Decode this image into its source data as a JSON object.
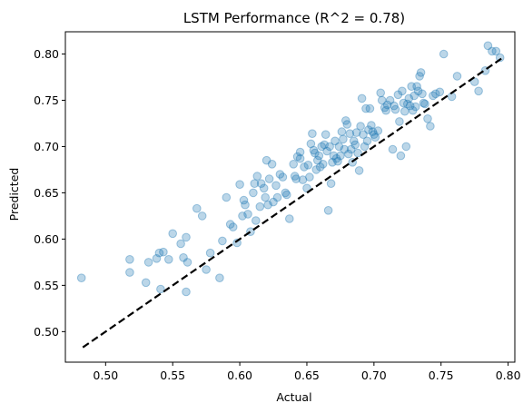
{
  "chart_data": {
    "type": "scatter",
    "title": "LSTM Performance (R^2 = 0.78)",
    "xlabel": "Actual",
    "ylabel": "Predicted",
    "xlim": [
      0.47,
      0.805
    ],
    "ylim": [
      0.467,
      0.824
    ],
    "xticks": [
      0.5,
      0.55,
      0.6,
      0.65,
      0.7,
      0.75,
      0.8
    ],
    "xtick_labels": [
      "0.50",
      "0.55",
      "0.60",
      "0.65",
      "0.70",
      "0.75",
      "0.80"
    ],
    "yticks": [
      0.5,
      0.55,
      0.6,
      0.65,
      0.7,
      0.75,
      0.8
    ],
    "ytick_labels": [
      "0.50",
      "0.55",
      "0.60",
      "0.65",
      "0.70",
      "0.75",
      "0.80"
    ],
    "grid": false,
    "point_color": "#1f77b4",
    "point_opacity": 0.3,
    "reference_line": {
      "x": [
        0.483,
        0.795
      ],
      "y": [
        0.483,
        0.795
      ],
      "color": "#000000",
      "style": "dashed"
    },
    "points": [
      [
        0.482,
        0.558
      ],
      [
        0.518,
        0.578
      ],
      [
        0.518,
        0.564
      ],
      [
        0.53,
        0.553
      ],
      [
        0.532,
        0.575
      ],
      [
        0.538,
        0.579
      ],
      [
        0.54,
        0.585
      ],
      [
        0.541,
        0.546
      ],
      [
        0.543,
        0.586
      ],
      [
        0.547,
        0.578
      ],
      [
        0.55,
        0.606
      ],
      [
        0.556,
        0.595
      ],
      [
        0.558,
        0.58
      ],
      [
        0.56,
        0.602
      ],
      [
        0.56,
        0.543
      ],
      [
        0.561,
        0.575
      ],
      [
        0.568,
        0.633
      ],
      [
        0.572,
        0.625
      ],
      [
        0.575,
        0.567
      ],
      [
        0.578,
        0.585
      ],
      [
        0.585,
        0.558
      ],
      [
        0.587,
        0.598
      ],
      [
        0.59,
        0.645
      ],
      [
        0.593,
        0.616
      ],
      [
        0.595,
        0.613
      ],
      [
        0.598,
        0.596
      ],
      [
        0.6,
        0.659
      ],
      [
        0.602,
        0.625
      ],
      [
        0.603,
        0.642
      ],
      [
        0.604,
        0.637
      ],
      [
        0.606,
        0.627
      ],
      [
        0.608,
        0.608
      ],
      [
        0.61,
        0.65
      ],
      [
        0.611,
        0.66
      ],
      [
        0.612,
        0.62
      ],
      [
        0.613,
        0.668
      ],
      [
        0.615,
        0.635
      ],
      [
        0.616,
        0.66
      ],
      [
        0.618,
        0.655
      ],
      [
        0.619,
        0.645
      ],
      [
        0.62,
        0.685
      ],
      [
        0.621,
        0.637
      ],
      [
        0.622,
        0.665
      ],
      [
        0.624,
        0.681
      ],
      [
        0.625,
        0.64
      ],
      [
        0.627,
        0.658
      ],
      [
        0.628,
        0.645
      ],
      [
        0.63,
        0.67
      ],
      [
        0.632,
        0.667
      ],
      [
        0.634,
        0.65
      ],
      [
        0.635,
        0.648
      ],
      [
        0.637,
        0.622
      ],
      [
        0.64,
        0.681
      ],
      [
        0.641,
        0.668
      ],
      [
        0.642,
        0.665
      ],
      [
        0.643,
        0.689
      ],
      [
        0.645,
        0.687
      ],
      [
        0.645,
        0.694
      ],
      [
        0.647,
        0.664
      ],
      [
        0.648,
        0.678
      ],
      [
        0.65,
        0.655
      ],
      [
        0.651,
        0.68
      ],
      [
        0.652,
        0.667
      ],
      [
        0.653,
        0.703
      ],
      [
        0.654,
        0.714
      ],
      [
        0.655,
        0.696
      ],
      [
        0.656,
        0.693
      ],
      [
        0.657,
        0.675
      ],
      [
        0.658,
        0.685
      ],
      [
        0.659,
        0.69
      ],
      [
        0.66,
        0.678
      ],
      [
        0.661,
        0.7
      ],
      [
        0.662,
        0.681
      ],
      [
        0.663,
        0.702
      ],
      [
        0.664,
        0.713
      ],
      [
        0.665,
        0.695
      ],
      [
        0.666,
        0.631
      ],
      [
        0.667,
        0.7
      ],
      [
        0.668,
        0.66
      ],
      [
        0.669,
        0.683
      ],
      [
        0.67,
        0.69
      ],
      [
        0.671,
        0.706
      ],
      [
        0.672,
        0.687
      ],
      [
        0.673,
        0.684
      ],
      [
        0.674,
        0.7
      ],
      [
        0.675,
        0.69
      ],
      [
        0.676,
        0.716
      ],
      [
        0.677,
        0.708
      ],
      [
        0.678,
        0.697
      ],
      [
        0.679,
        0.728
      ],
      [
        0.68,
        0.724
      ],
      [
        0.681,
        0.692
      ],
      [
        0.682,
        0.714
      ],
      [
        0.683,
        0.697
      ],
      [
        0.684,
        0.683
      ],
      [
        0.685,
        0.706
      ],
      [
        0.686,
        0.702
      ],
      [
        0.687,
        0.715
      ],
      [
        0.688,
        0.693
      ],
      [
        0.689,
        0.674
      ],
      [
        0.69,
        0.722
      ],
      [
        0.691,
        0.752
      ],
      [
        0.692,
        0.713
      ],
      [
        0.693,
        0.7
      ],
      [
        0.694,
        0.741
      ],
      [
        0.695,
        0.706
      ],
      [
        0.696,
        0.718
      ],
      [
        0.697,
        0.741
      ],
      [
        0.698,
        0.723
      ],
      [
        0.699,
        0.716
      ],
      [
        0.7,
        0.713
      ],
      [
        0.701,
        0.71
      ],
      [
        0.703,
        0.717
      ],
      [
        0.705,
        0.758
      ],
      [
        0.706,
        0.75
      ],
      [
        0.708,
        0.742
      ],
      [
        0.709,
        0.739
      ],
      [
        0.71,
        0.745
      ],
      [
        0.712,
        0.75
      ],
      [
        0.714,
        0.697
      ],
      [
        0.715,
        0.744
      ],
      [
        0.716,
        0.74
      ],
      [
        0.718,
        0.756
      ],
      [
        0.719,
        0.727
      ],
      [
        0.72,
        0.69
      ],
      [
        0.721,
        0.76
      ],
      [
        0.722,
        0.747
      ],
      [
        0.723,
        0.738
      ],
      [
        0.724,
        0.7
      ],
      [
        0.725,
        0.746
      ],
      [
        0.726,
        0.752
      ],
      [
        0.727,
        0.744
      ],
      [
        0.728,
        0.765
      ],
      [
        0.729,
        0.739
      ],
      [
        0.73,
        0.755
      ],
      [
        0.731,
        0.743
      ],
      [
        0.732,
        0.765
      ],
      [
        0.733,
        0.76
      ],
      [
        0.734,
        0.776
      ],
      [
        0.735,
        0.78
      ],
      [
        0.736,
        0.757
      ],
      [
        0.737,
        0.747
      ],
      [
        0.738,
        0.746
      ],
      [
        0.74,
        0.73
      ],
      [
        0.742,
        0.722
      ],
      [
        0.744,
        0.755
      ],
      [
        0.746,
        0.757
      ],
      [
        0.749,
        0.759
      ],
      [
        0.752,
        0.8
      ],
      [
        0.758,
        0.754
      ],
      [
        0.762,
        0.776
      ],
      [
        0.775,
        0.77
      ],
      [
        0.778,
        0.76
      ],
      [
        0.783,
        0.782
      ],
      [
        0.785,
        0.809
      ],
      [
        0.788,
        0.803
      ],
      [
        0.791,
        0.803
      ],
      [
        0.794,
        0.796
      ]
    ]
  }
}
